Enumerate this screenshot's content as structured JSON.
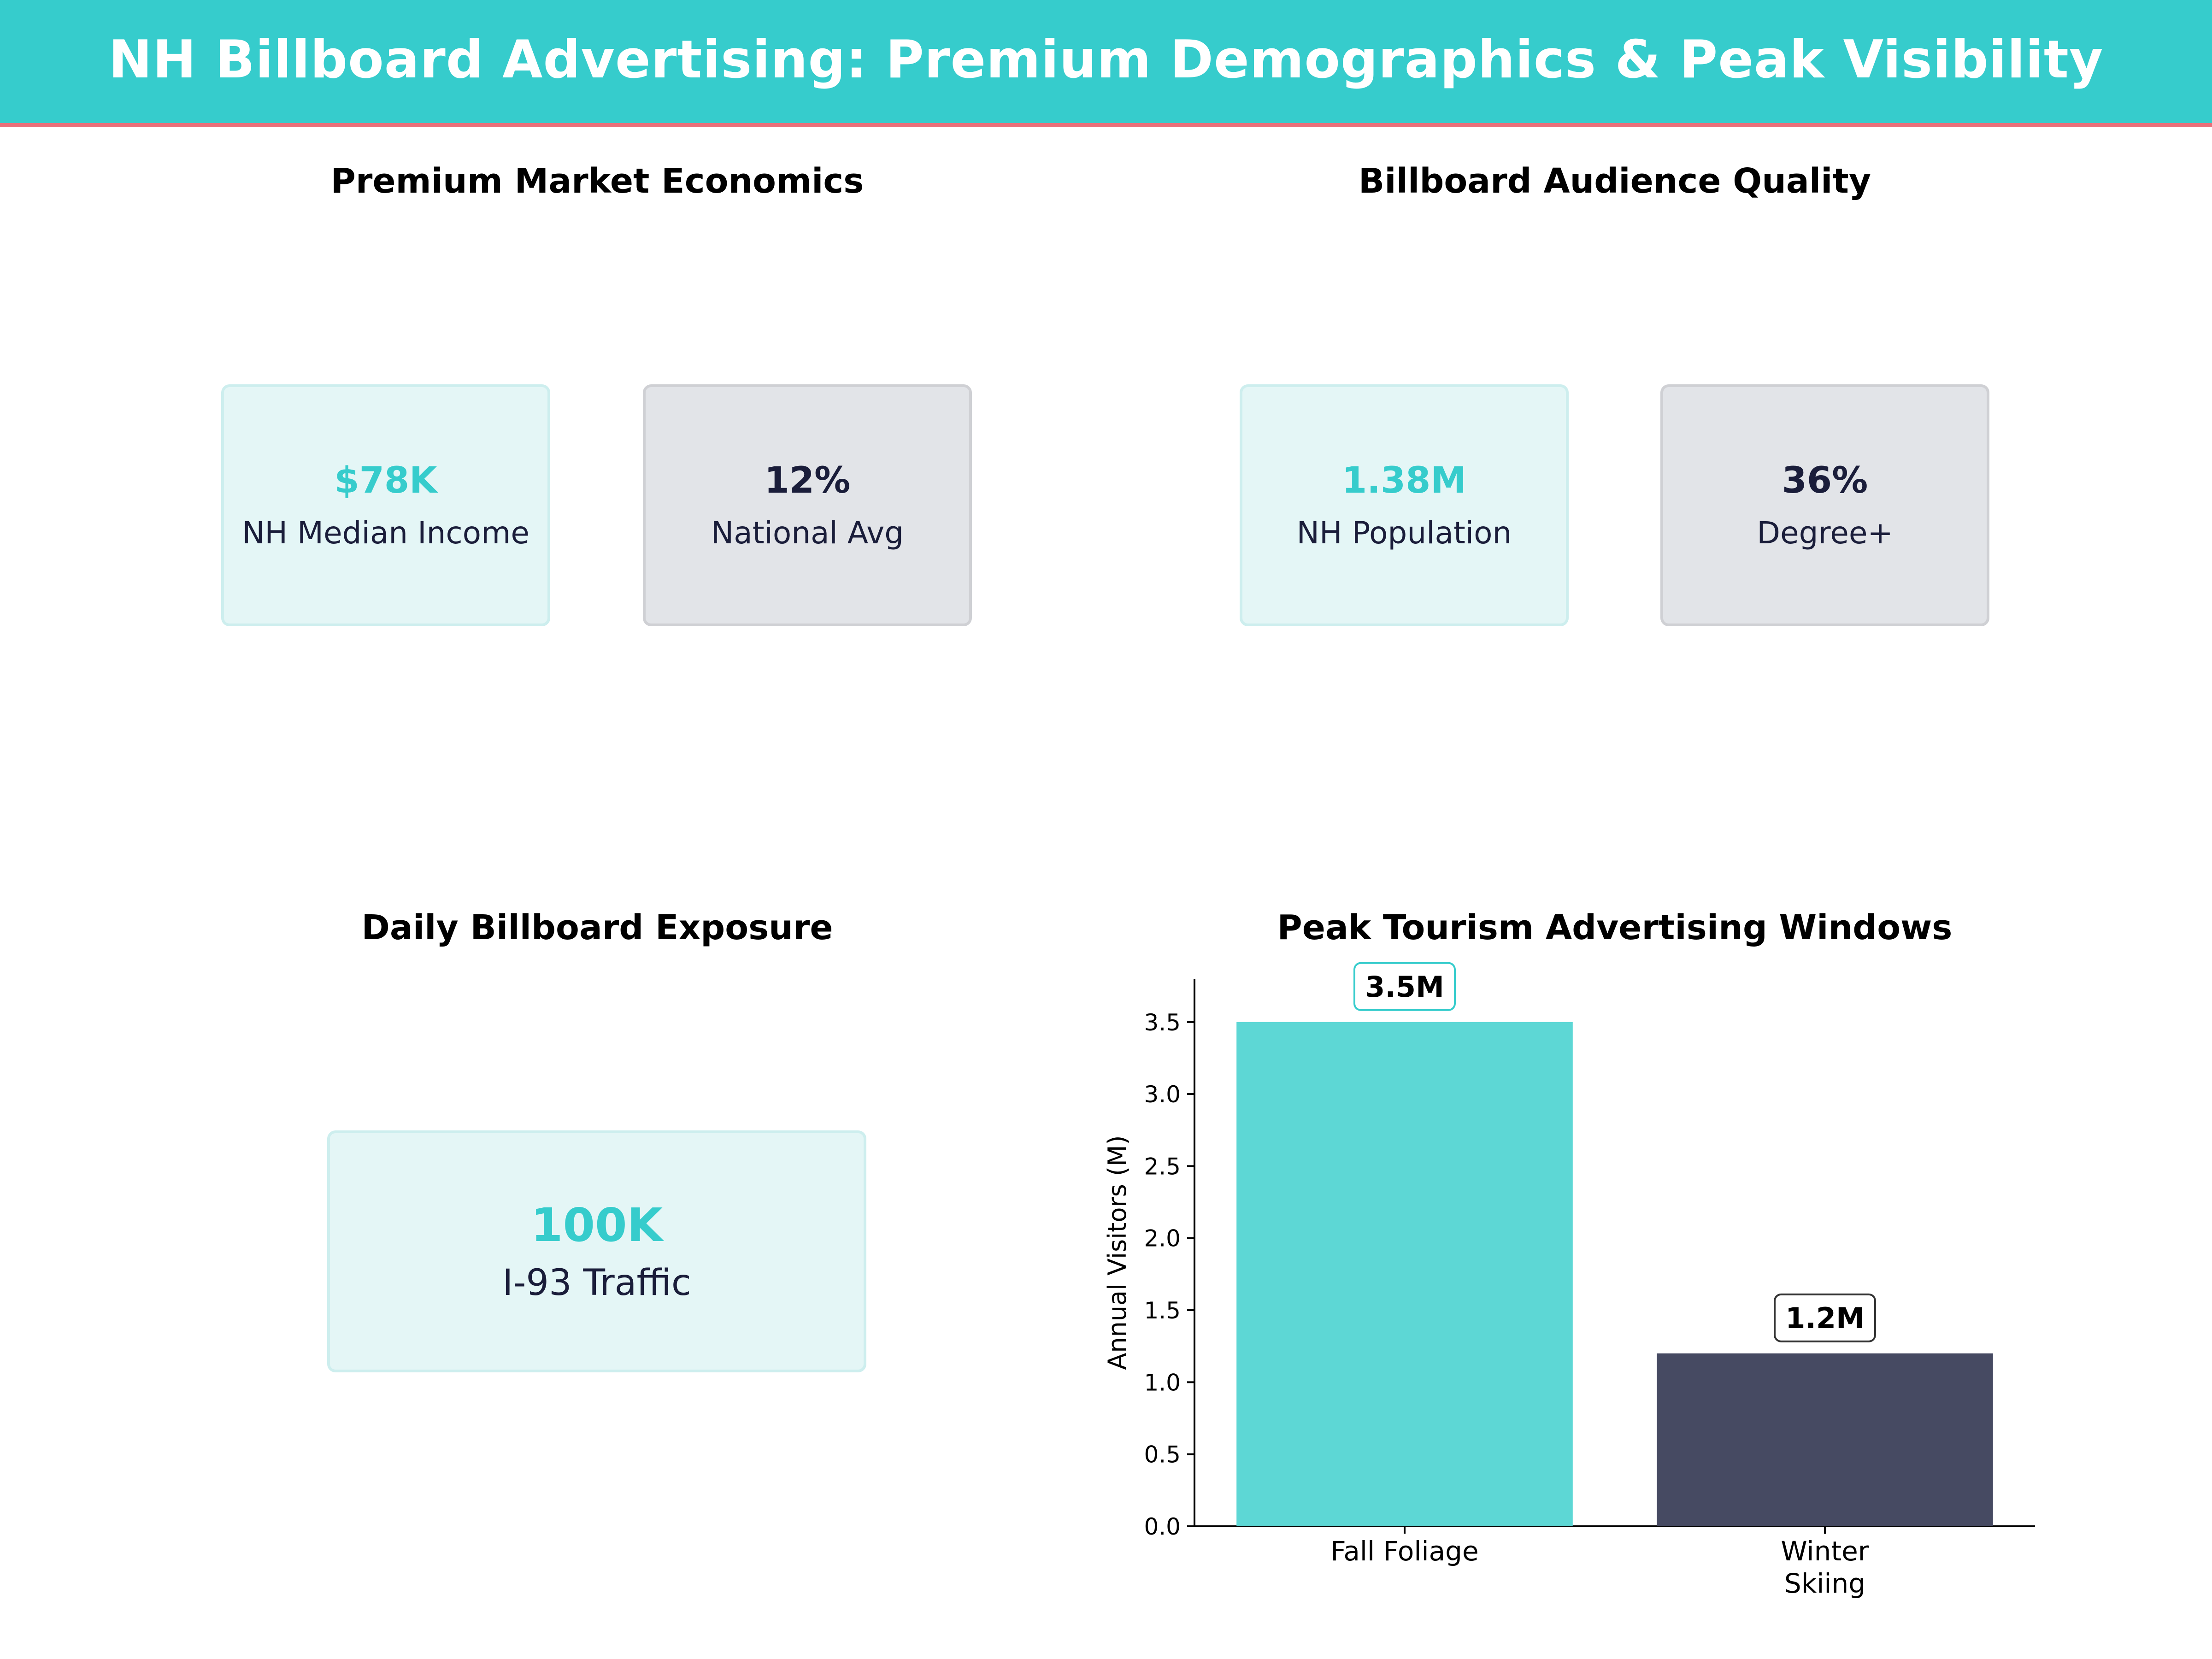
{
  "header": {
    "title": "NH Billboard Advertising: Premium Demographics & Peak Visibility"
  },
  "panels": {
    "economics": {
      "title": "Premium Market Economics",
      "cards": [
        {
          "value": "$78K",
          "label": "NH Median Income",
          "style": "teal"
        },
        {
          "value": "12%",
          "label": "National Avg",
          "style": "gray"
        }
      ]
    },
    "audience": {
      "title": "Billboard Audience Quality",
      "cards": [
        {
          "value": "1.38M",
          "label": "NH Population",
          "style": "teal"
        },
        {
          "value": "36%",
          "label": "Degree+",
          "style": "gray"
        }
      ]
    },
    "exposure": {
      "title": "Daily Billboard Exposure",
      "card": {
        "value": "100K",
        "label": "I-93 Traffic",
        "style": "teal"
      }
    }
  },
  "chart_data": {
    "type": "bar",
    "title": "Peak Tourism Advertising Windows",
    "categories": [
      "Fall Foliage",
      "Winter\nSkiing"
    ],
    "values": [
      3.5,
      1.2
    ],
    "data_labels": [
      "3.5M",
      "1.2M"
    ],
    "colors": [
      "#5dd7d5",
      "#464a62"
    ],
    "label_box_borders": [
      "#36cccc",
      "#333333"
    ],
    "xlabel": "",
    "ylabel": "Annual Visitors (M)",
    "ylim": [
      0,
      3.8
    ],
    "yticks": [
      "0.0",
      "0.5",
      "1.0",
      "1.5",
      "2.0",
      "2.5",
      "3.0",
      "3.5"
    ],
    "grid": false,
    "legend": "none"
  },
  "colors": {
    "accent": "#36cccc",
    "banner_underline": "#e8707a",
    "dark": "#1a1d3a"
  }
}
